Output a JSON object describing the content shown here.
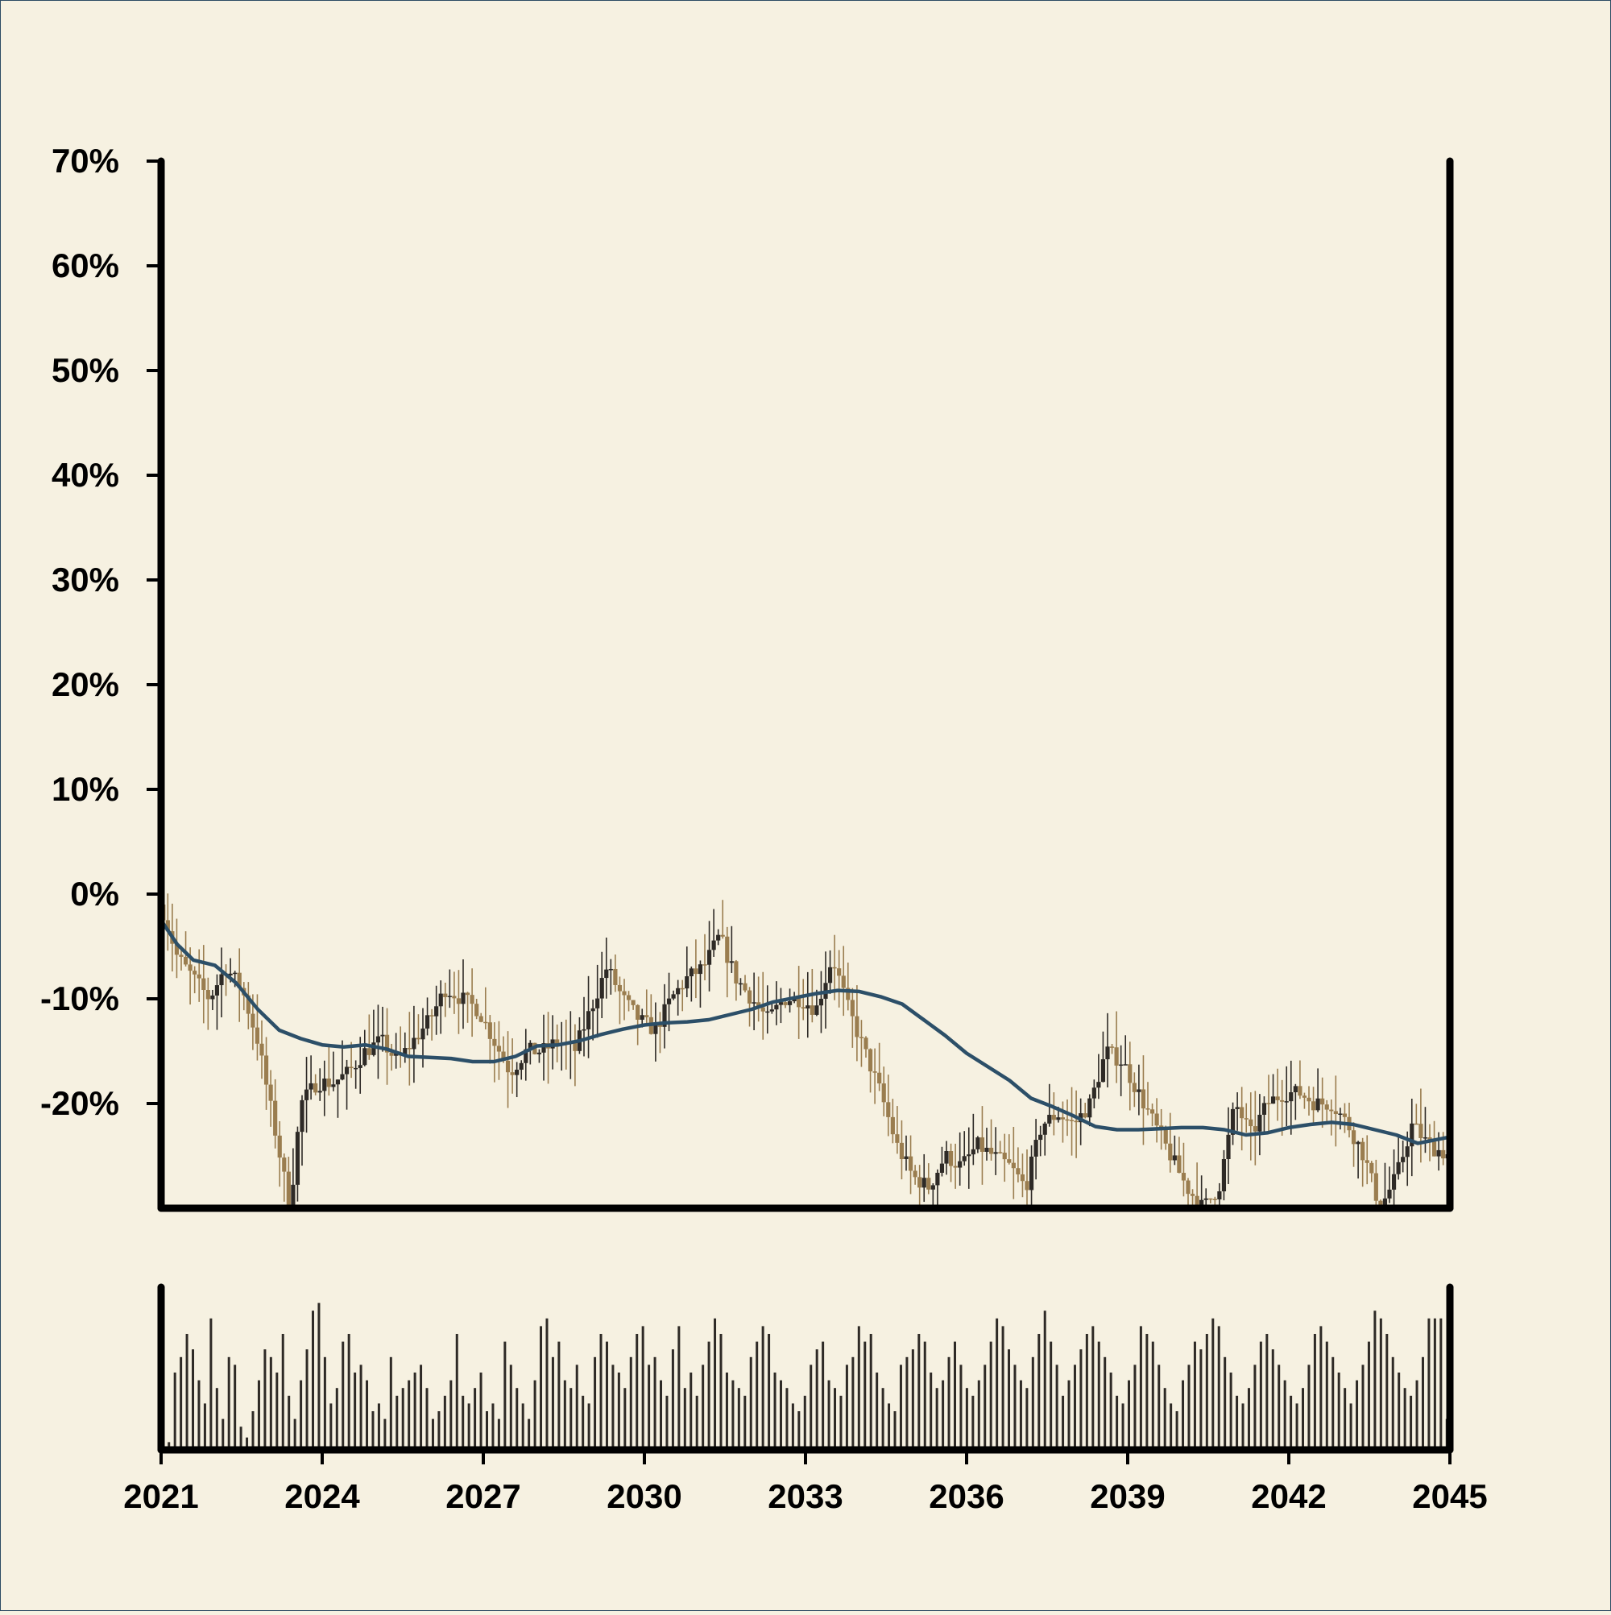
{
  "chart_data": [
    {
      "type": "candlestick",
      "title": "",
      "xlabel": "",
      "ylabel": "",
      "ylim": [
        -30,
        70
      ],
      "xlim": [
        2021,
        2045
      ],
      "y_ticks": [
        -20,
        -10,
        0,
        10,
        20,
        30,
        40,
        50,
        60,
        70
      ],
      "y_tick_labels": [
        "-20%",
        "-10%",
        "0%",
        "10%",
        "20%",
        "30%",
        "40%",
        "50%",
        "60%",
        "70%"
      ],
      "x_ticks": [
        2021,
        2024,
        2027,
        2030,
        2033,
        2036,
        2039,
        2042,
        2045
      ],
      "x_tick_labels": [
        "2021",
        "2024",
        "2027",
        "2030",
        "2033",
        "2036",
        "2039",
        "2042",
        "2045"
      ],
      "colors": {
        "up": "#2e2a26",
        "down": "#9a7d4f",
        "moving_average": "#2c4f68",
        "axis": "#000000",
        "background": "#f6f1e1"
      },
      "grid": false,
      "close_points": [
        [
          2021.0,
          -1
        ],
        [
          2021.3,
          -6
        ],
        [
          2021.6,
          -8
        ],
        [
          2021.9,
          -10
        ],
        [
          2022.2,
          -7
        ],
        [
          2022.5,
          -9
        ],
        [
          2022.8,
          -14
        ],
        [
          2023.1,
          -22
        ],
        [
          2023.4,
          -30
        ],
        [
          2023.6,
          -20
        ],
        [
          2023.9,
          -18
        ],
        [
          2024.2,
          -18
        ],
        [
          2024.5,
          -17
        ],
        [
          2024.8,
          -15
        ],
        [
          2025.1,
          -14
        ],
        [
          2025.4,
          -16
        ],
        [
          2025.7,
          -14
        ],
        [
          2026.0,
          -12
        ],
        [
          2026.3,
          -9
        ],
        [
          2026.6,
          -10
        ],
        [
          2026.9,
          -11
        ],
        [
          2027.2,
          -14
        ],
        [
          2027.5,
          -17
        ],
        [
          2027.8,
          -15
        ],
        [
          2028.1,
          -15
        ],
        [
          2028.4,
          -14
        ],
        [
          2028.7,
          -15
        ],
        [
          2029.0,
          -11
        ],
        [
          2029.3,
          -7
        ],
        [
          2029.6,
          -10
        ],
        [
          2029.9,
          -12
        ],
        [
          2030.2,
          -13
        ],
        [
          2030.5,
          -10
        ],
        [
          2030.8,
          -8
        ],
        [
          2031.1,
          -7
        ],
        [
          2031.4,
          -4
        ],
        [
          2031.7,
          -8
        ],
        [
          2032.0,
          -10
        ],
        [
          2032.3,
          -12
        ],
        [
          2032.6,
          -10
        ],
        [
          2032.9,
          -10
        ],
        [
          2033.2,
          -11
        ],
        [
          2033.5,
          -6
        ],
        [
          2033.8,
          -11
        ],
        [
          2034.1,
          -15
        ],
        [
          2034.4,
          -19
        ],
        [
          2034.7,
          -24
        ],
        [
          2035.0,
          -27
        ],
        [
          2035.3,
          -28
        ],
        [
          2035.6,
          -25
        ],
        [
          2035.9,
          -26
        ],
        [
          2036.2,
          -24
        ],
        [
          2036.5,
          -25
        ],
        [
          2036.8,
          -26
        ],
        [
          2037.1,
          -28
        ],
        [
          2037.4,
          -22
        ],
        [
          2037.7,
          -21
        ],
        [
          2038.0,
          -22
        ],
        [
          2038.3,
          -20
        ],
        [
          2038.6,
          -15
        ],
        [
          2038.9,
          -16
        ],
        [
          2039.2,
          -19
        ],
        [
          2039.5,
          -22
        ],
        [
          2039.8,
          -25
        ],
        [
          2040.1,
          -28
        ],
        [
          2040.4,
          -30
        ],
        [
          2040.7,
          -28
        ],
        [
          2041.0,
          -20
        ],
        [
          2041.3,
          -23
        ],
        [
          2041.6,
          -20
        ],
        [
          2041.9,
          -19
        ],
        [
          2042.2,
          -19
        ],
        [
          2042.5,
          -20
        ],
        [
          2042.8,
          -20
        ],
        [
          2043.1,
          -22
        ],
        [
          2043.4,
          -25
        ],
        [
          2043.7,
          -30
        ],
        [
          2044.0,
          -27
        ],
        [
          2044.3,
          -22
        ],
        [
          2044.6,
          -24
        ],
        [
          2045.0,
          -25
        ]
      ],
      "moving_average": [
        [
          2021.0,
          -2.5
        ],
        [
          2021.3,
          -4.8
        ],
        [
          2021.6,
          -6.3
        ],
        [
          2022.0,
          -6.8
        ],
        [
          2022.4,
          -8.5
        ],
        [
          2022.8,
          -11
        ],
        [
          2023.2,
          -13
        ],
        [
          2023.6,
          -13.8
        ],
        [
          2024.0,
          -14.4
        ],
        [
          2024.4,
          -14.6
        ],
        [
          2024.8,
          -14.4
        ],
        [
          2025.2,
          -14.8
        ],
        [
          2025.6,
          -15.5
        ],
        [
          2026.0,
          -15.6
        ],
        [
          2026.4,
          -15.7
        ],
        [
          2026.8,
          -16.0
        ],
        [
          2027.2,
          -16.0
        ],
        [
          2027.6,
          -15.5
        ],
        [
          2028.0,
          -14.5
        ],
        [
          2028.4,
          -14.4
        ],
        [
          2028.8,
          -14.0
        ],
        [
          2029.2,
          -13.4
        ],
        [
          2029.6,
          -12.9
        ],
        [
          2030.0,
          -12.5
        ],
        [
          2030.4,
          -12.3
        ],
        [
          2030.8,
          -12.2
        ],
        [
          2031.2,
          -12.0
        ],
        [
          2031.6,
          -11.5
        ],
        [
          2032.0,
          -11.0
        ],
        [
          2032.4,
          -10.3
        ],
        [
          2032.8,
          -9.9
        ],
        [
          2033.2,
          -9.5
        ],
        [
          2033.6,
          -9.2
        ],
        [
          2034.0,
          -9.3
        ],
        [
          2034.4,
          -9.8
        ],
        [
          2034.8,
          -10.5
        ],
        [
          2035.2,
          -12
        ],
        [
          2035.6,
          -13.5
        ],
        [
          2036.0,
          -15.2
        ],
        [
          2036.4,
          -16.5
        ],
        [
          2036.8,
          -17.8
        ],
        [
          2037.2,
          -19.5
        ],
        [
          2037.6,
          -20.3
        ],
        [
          2038.0,
          -21.2
        ],
        [
          2038.4,
          -22.2
        ],
        [
          2038.8,
          -22.5
        ],
        [
          2039.2,
          -22.5
        ],
        [
          2039.6,
          -22.4
        ],
        [
          2040.0,
          -22.3
        ],
        [
          2040.4,
          -22.3
        ],
        [
          2040.8,
          -22.5
        ],
        [
          2041.2,
          -23.0
        ],
        [
          2041.6,
          -22.8
        ],
        [
          2042.0,
          -22.3
        ],
        [
          2042.4,
          -22.0
        ],
        [
          2042.8,
          -21.8
        ],
        [
          2043.2,
          -22.0
        ],
        [
          2043.6,
          -22.5
        ],
        [
          2044.0,
          -23.0
        ],
        [
          2044.4,
          -23.8
        ],
        [
          2044.8,
          -23.4
        ],
        [
          2045.0,
          -23.2
        ]
      ]
    },
    {
      "type": "bar",
      "role": "volume",
      "title": "",
      "xlim": [
        2021,
        2045
      ],
      "ylim": [
        0,
        1
      ],
      "note_values": "relative heights",
      "bar_heights": [
        0.05,
        0.5,
        0.6,
        0.75,
        0.65,
        0.45,
        0.3,
        0.85,
        0.4,
        0.2,
        0.6,
        0.55,
        0.15,
        0.08,
        0.25,
        0.45,
        0.65,
        0.6,
        0.5,
        0.75,
        0.35,
        0.2,
        0.45,
        0.65,
        0.9,
        0.95,
        0.6,
        0.3,
        0.4,
        0.7,
        0.75,
        0.5,
        0.55,
        0.45,
        0.25,
        0.3,
        0.2,
        0.6,
        0.35,
        0.4,
        0.45,
        0.5,
        0.55,
        0.4,
        0.2,
        0.25,
        0.35,
        0.45,
        0.75,
        0.35,
        0.3,
        0.4,
        0.5,
        0.25,
        0.3,
        0.2,
        0.7,
        0.55,
        0.4,
        0.3,
        0.2,
        0.45,
        0.8,
        0.85,
        0.6,
        0.7,
        0.45,
        0.4,
        0.55,
        0.35,
        0.3,
        0.6,
        0.75,
        0.7,
        0.55,
        0.5,
        0.4,
        0.6,
        0.75,
        0.8,
        0.55,
        0.6,
        0.45,
        0.35,
        0.65,
        0.8,
        0.4,
        0.5,
        0.35,
        0.55,
        0.7,
        0.85,
        0.75,
        0.5,
        0.45,
        0.4,
        0.35,
        0.6,
        0.7,
        0.8,
        0.75,
        0.5,
        0.45,
        0.4,
        0.3,
        0.25,
        0.35,
        0.55,
        0.65,
        0.7,
        0.45,
        0.4,
        0.35,
        0.55,
        0.6,
        0.8,
        0.7,
        0.75,
        0.5,
        0.4,
        0.3,
        0.25,
        0.55,
        0.6,
        0.65,
        0.75,
        0.7,
        0.5,
        0.4,
        0.45,
        0.6,
        0.7,
        0.55,
        0.4,
        0.35,
        0.45,
        0.55,
        0.7,
        0.85,
        0.8,
        0.65,
        0.55,
        0.45,
        0.4,
        0.6,
        0.75,
        0.9,
        0.7,
        0.55,
        0.35,
        0.45,
        0.55,
        0.65,
        0.75,
        0.8,
        0.7,
        0.6,
        0.5,
        0.35,
        0.3,
        0.45,
        0.55,
        0.8,
        0.75,
        0.7,
        0.55,
        0.4,
        0.3,
        0.25,
        0.45,
        0.55,
        0.7,
        0.65,
        0.75,
        0.85,
        0.8,
        0.6,
        0.5,
        0.35,
        0.3,
        0.4,
        0.55,
        0.7,
        0.75,
        0.65,
        0.55,
        0.45,
        0.35,
        0.3,
        0.4,
        0.55,
        0.75,
        0.8,
        0.7,
        0.6,
        0.5,
        0.4,
        0.3,
        0.45,
        0.55,
        0.7,
        0.9,
        0.85,
        0.75,
        0.6,
        0.5,
        0.4,
        0.35,
        0.45,
        0.6,
        0.85,
        0.85,
        0.85,
        0.2
      ]
    }
  ]
}
